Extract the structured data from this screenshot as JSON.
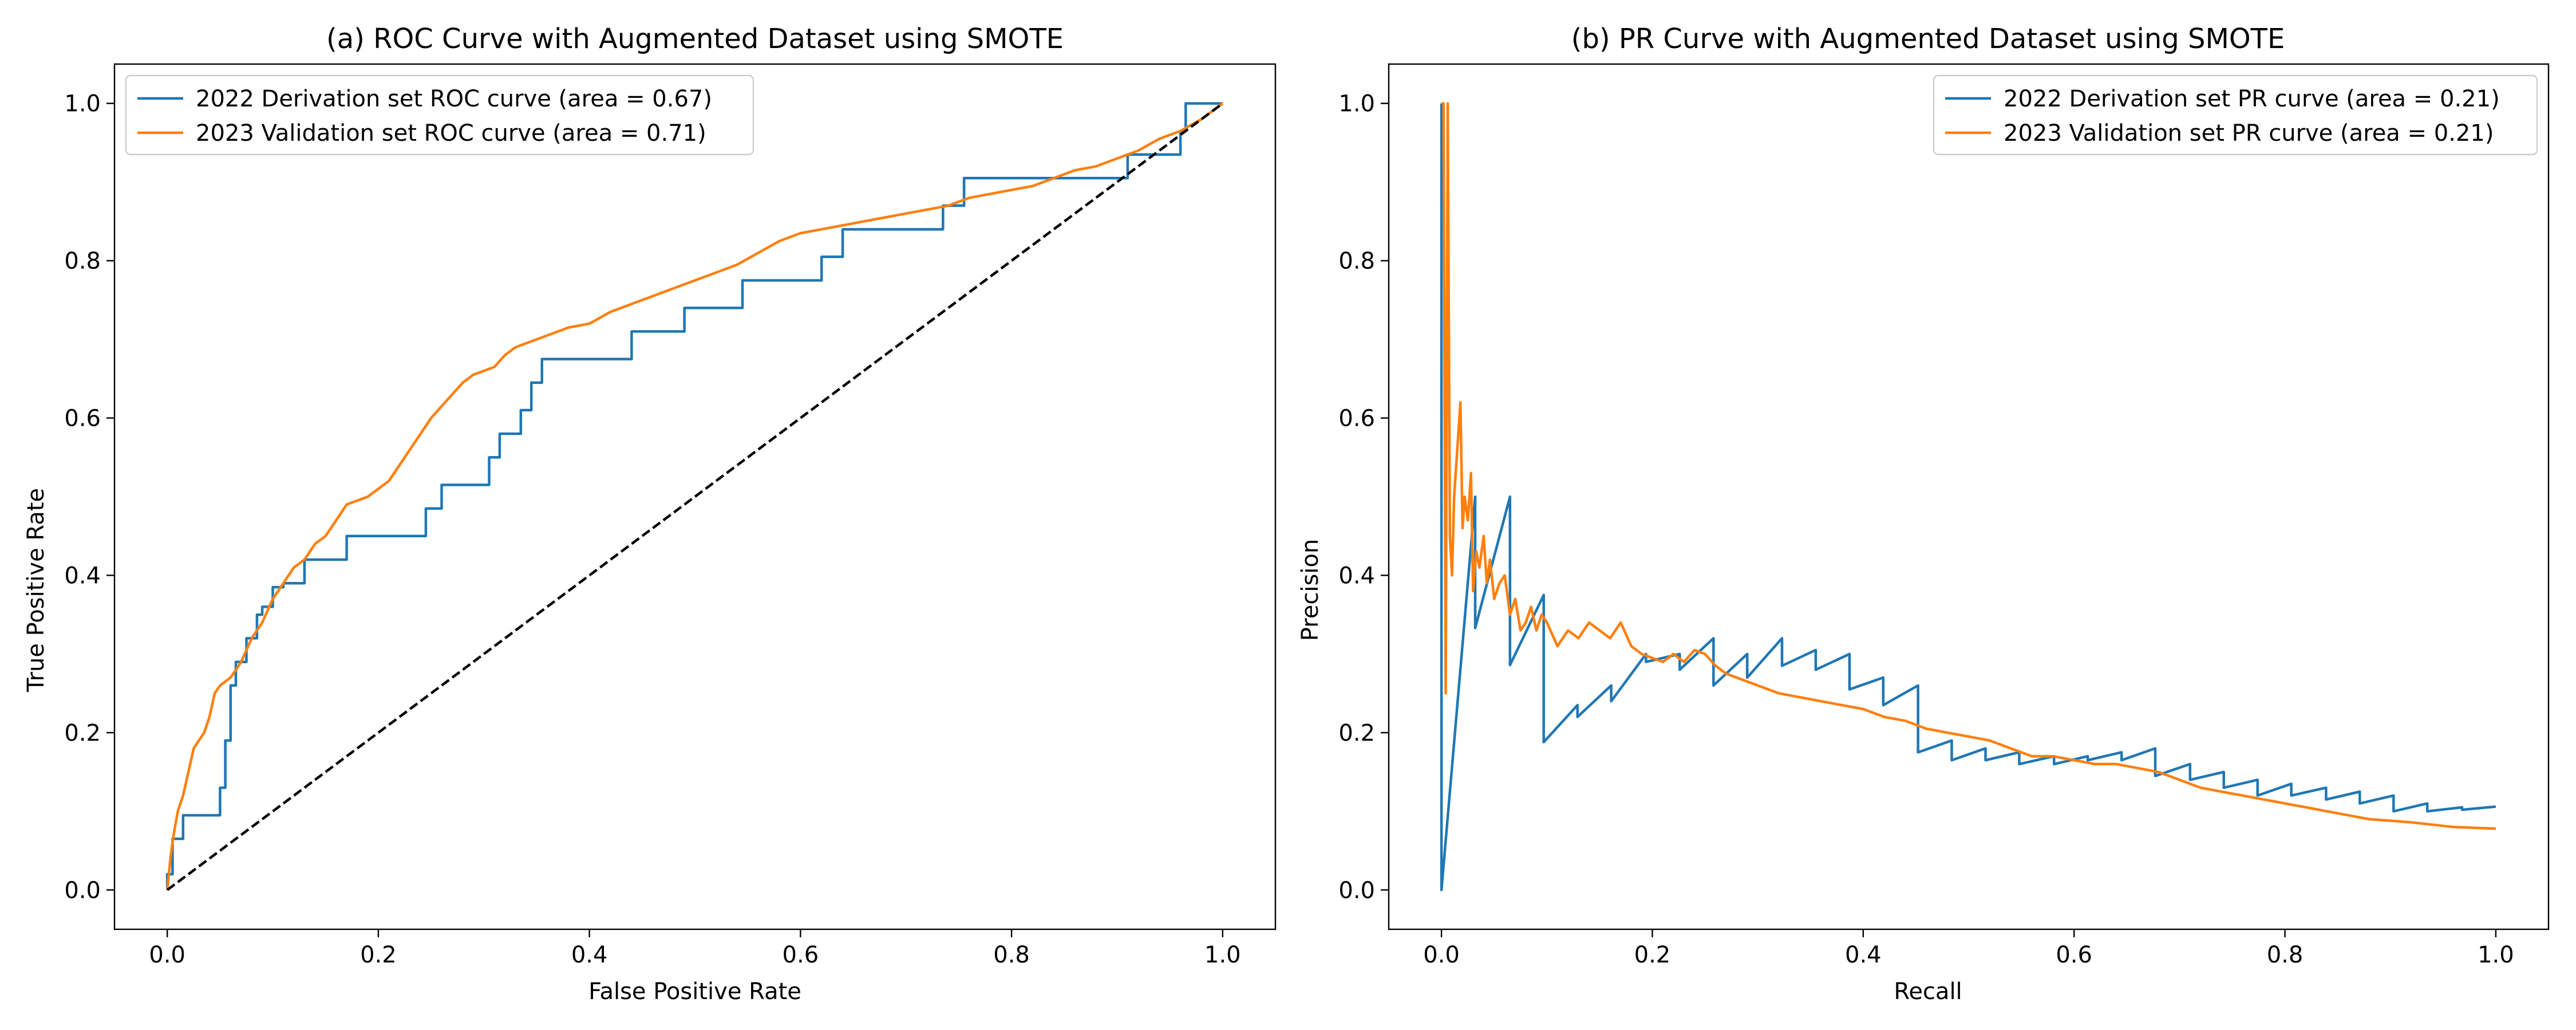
{
  "colors": {
    "series_2022": "#1f77b4",
    "series_2023": "#ff7f0e",
    "diagonal": "#000000"
  },
  "chart_data": [
    {
      "type": "line",
      "title": "(a) ROC Curve with Augmented Dataset using SMOTE",
      "xlabel": "False Positive Rate",
      "ylabel": "True Positive Rate",
      "xlim": [
        -0.05,
        1.05
      ],
      "ylim": [
        -0.05,
        1.05
      ],
      "xticks": [
        0.0,
        0.2,
        0.4,
        0.6,
        0.8,
        1.0
      ],
      "yticks": [
        0.0,
        0.2,
        0.4,
        0.6,
        0.8,
        1.0
      ],
      "tick_labels": [
        "0.0",
        "0.2",
        "0.4",
        "0.6",
        "0.8",
        "1.0"
      ],
      "grid": false,
      "legend_position": "upper-left",
      "reference_line": {
        "style": "dashed",
        "x": [
          0,
          1
        ],
        "y": [
          0,
          1
        ]
      },
      "series": [
        {
          "name": "2022 Derivation set ROC curve (area = 0.67)",
          "x": [
            0.0,
            0.0,
            0.005,
            0.005,
            0.015,
            0.015,
            0.02,
            0.02,
            0.05,
            0.05,
            0.055,
            0.055,
            0.06,
            0.06,
            0.065,
            0.065,
            0.075,
            0.075,
            0.085,
            0.085,
            0.09,
            0.09,
            0.1,
            0.1,
            0.11,
            0.11,
            0.13,
            0.13,
            0.17,
            0.17,
            0.245,
            0.245,
            0.26,
            0.26,
            0.305,
            0.305,
            0.315,
            0.315,
            0.335,
            0.335,
            0.345,
            0.345,
            0.355,
            0.355,
            0.44,
            0.44,
            0.49,
            0.49,
            0.545,
            0.545,
            0.62,
            0.62,
            0.64,
            0.64,
            0.735,
            0.735,
            0.755,
            0.755,
            0.91,
            0.91,
            0.96,
            0.96,
            0.965,
            0.965,
            1.0
          ],
          "y": [
            0.0,
            0.02,
            0.02,
            0.065,
            0.065,
            0.095,
            0.095,
            0.095,
            0.095,
            0.13,
            0.13,
            0.19,
            0.19,
            0.26,
            0.26,
            0.29,
            0.29,
            0.32,
            0.32,
            0.35,
            0.35,
            0.36,
            0.36,
            0.385,
            0.385,
            0.39,
            0.39,
            0.42,
            0.42,
            0.45,
            0.45,
            0.485,
            0.485,
            0.515,
            0.515,
            0.55,
            0.55,
            0.58,
            0.58,
            0.61,
            0.61,
            0.645,
            0.645,
            0.675,
            0.675,
            0.71,
            0.71,
            0.74,
            0.74,
            0.775,
            0.775,
            0.805,
            0.805,
            0.84,
            0.84,
            0.87,
            0.87,
            0.905,
            0.905,
            0.935,
            0.935,
            0.965,
            0.965,
            1.0,
            1.0
          ]
        },
        {
          "name": "2023 Validation set ROC curve (area = 0.71)",
          "x": [
            0.0,
            0.003,
            0.006,
            0.01,
            0.015,
            0.02,
            0.025,
            0.03,
            0.035,
            0.04,
            0.045,
            0.05,
            0.06,
            0.07,
            0.08,
            0.09,
            0.1,
            0.11,
            0.12,
            0.13,
            0.14,
            0.15,
            0.16,
            0.17,
            0.18,
            0.19,
            0.2,
            0.21,
            0.22,
            0.23,
            0.24,
            0.25,
            0.26,
            0.27,
            0.28,
            0.29,
            0.3,
            0.31,
            0.32,
            0.33,
            0.34,
            0.35,
            0.36,
            0.38,
            0.4,
            0.42,
            0.44,
            0.46,
            0.48,
            0.5,
            0.52,
            0.54,
            0.56,
            0.58,
            0.6,
            0.62,
            0.64,
            0.66,
            0.68,
            0.7,
            0.72,
            0.74,
            0.76,
            0.78,
            0.8,
            0.82,
            0.84,
            0.86,
            0.88,
            0.9,
            0.92,
            0.94,
            0.96,
            0.98,
            1.0
          ],
          "y": [
            0.0,
            0.04,
            0.07,
            0.1,
            0.12,
            0.15,
            0.18,
            0.19,
            0.2,
            0.22,
            0.25,
            0.26,
            0.27,
            0.29,
            0.32,
            0.34,
            0.37,
            0.39,
            0.41,
            0.42,
            0.44,
            0.45,
            0.47,
            0.49,
            0.495,
            0.5,
            0.51,
            0.52,
            0.54,
            0.56,
            0.58,
            0.6,
            0.615,
            0.63,
            0.645,
            0.655,
            0.66,
            0.665,
            0.68,
            0.69,
            0.695,
            0.7,
            0.705,
            0.715,
            0.72,
            0.735,
            0.745,
            0.755,
            0.765,
            0.775,
            0.785,
            0.795,
            0.81,
            0.825,
            0.835,
            0.84,
            0.845,
            0.85,
            0.855,
            0.86,
            0.865,
            0.87,
            0.88,
            0.885,
            0.89,
            0.895,
            0.905,
            0.915,
            0.92,
            0.93,
            0.94,
            0.955,
            0.965,
            0.98,
            1.0
          ]
        }
      ]
    },
    {
      "type": "line",
      "title": "(b) PR Curve with Augmented Dataset using SMOTE",
      "xlabel": "Recall",
      "ylabel": "Precision",
      "xlim": [
        -0.05,
        1.05
      ],
      "ylim": [
        -0.05,
        1.05
      ],
      "xticks": [
        0.0,
        0.2,
        0.4,
        0.6,
        0.8,
        1.0
      ],
      "yticks": [
        0.0,
        0.2,
        0.4,
        0.6,
        0.8,
        1.0
      ],
      "tick_labels": [
        "0.0",
        "0.2",
        "0.4",
        "0.6",
        "0.8",
        "1.0"
      ],
      "grid": false,
      "legend_position": "upper-right",
      "series": [
        {
          "name": "2022 Derivation set PR curve (area = 0.21)",
          "x": [
            0.0,
            0.0,
            0.0,
            0.032,
            0.032,
            0.065,
            0.065,
            0.097,
            0.097,
            0.129,
            0.129,
            0.161,
            0.161,
            0.194,
            0.194,
            0.226,
            0.226,
            0.258,
            0.258,
            0.29,
            0.29,
            0.323,
            0.323,
            0.355,
            0.355,
            0.387,
            0.387,
            0.419,
            0.419,
            0.452,
            0.452,
            0.484,
            0.484,
            0.516,
            0.516,
            0.548,
            0.548,
            0.581,
            0.581,
            0.613,
            0.613,
            0.645,
            0.645,
            0.677,
            0.677,
            0.71,
            0.71,
            0.742,
            0.742,
            0.774,
            0.774,
            0.806,
            0.806,
            0.839,
            0.839,
            0.871,
            0.871,
            0.903,
            0.903,
            0.935,
            0.935,
            0.968,
            0.968,
            1.0
          ],
          "y": [
            1.0,
            1.0,
            0.0,
            0.5,
            0.333,
            0.5,
            0.286,
            0.375,
            0.188,
            0.235,
            0.22,
            0.26,
            0.24,
            0.3,
            0.29,
            0.3,
            0.28,
            0.32,
            0.26,
            0.3,
            0.27,
            0.32,
            0.285,
            0.305,
            0.28,
            0.3,
            0.255,
            0.27,
            0.235,
            0.26,
            0.175,
            0.19,
            0.165,
            0.18,
            0.165,
            0.175,
            0.16,
            0.17,
            0.16,
            0.17,
            0.165,
            0.175,
            0.165,
            0.18,
            0.145,
            0.16,
            0.14,
            0.15,
            0.13,
            0.14,
            0.12,
            0.135,
            0.12,
            0.13,
            0.115,
            0.125,
            0.11,
            0.12,
            0.1,
            0.11,
            0.1,
            0.105,
            0.102,
            0.106
          ]
        },
        {
          "name": "2023 Validation set PR curve (area = 0.21)",
          "x": [
            0.0,
            0.002,
            0.004,
            0.006,
            0.008,
            0.01,
            0.012,
            0.015,
            0.018,
            0.02,
            0.022,
            0.025,
            0.028,
            0.03,
            0.033,
            0.036,
            0.04,
            0.043,
            0.046,
            0.05,
            0.055,
            0.06,
            0.065,
            0.07,
            0.075,
            0.08,
            0.085,
            0.09,
            0.095,
            0.1,
            0.11,
            0.12,
            0.13,
            0.14,
            0.15,
            0.16,
            0.17,
            0.18,
            0.19,
            0.2,
            0.21,
            0.22,
            0.23,
            0.24,
            0.25,
            0.26,
            0.27,
            0.28,
            0.3,
            0.32,
            0.34,
            0.36,
            0.38,
            0.4,
            0.42,
            0.44,
            0.46,
            0.48,
            0.5,
            0.52,
            0.54,
            0.56,
            0.58,
            0.6,
            0.62,
            0.64,
            0.66,
            0.68,
            0.7,
            0.72,
            0.74,
            0.76,
            0.78,
            0.8,
            0.82,
            0.84,
            0.86,
            0.88,
            0.9,
            0.92,
            0.94,
            0.96,
            0.98,
            1.0
          ],
          "y": [
            1.0,
            1.0,
            0.25,
            1.0,
            0.45,
            0.4,
            0.5,
            0.56,
            0.62,
            0.46,
            0.5,
            0.47,
            0.53,
            0.38,
            0.43,
            0.41,
            0.45,
            0.39,
            0.42,
            0.37,
            0.39,
            0.4,
            0.35,
            0.37,
            0.33,
            0.34,
            0.36,
            0.33,
            0.35,
            0.34,
            0.31,
            0.33,
            0.32,
            0.34,
            0.33,
            0.32,
            0.34,
            0.31,
            0.3,
            0.295,
            0.29,
            0.3,
            0.29,
            0.305,
            0.3,
            0.285,
            0.275,
            0.27,
            0.26,
            0.25,
            0.245,
            0.24,
            0.235,
            0.23,
            0.22,
            0.215,
            0.205,
            0.2,
            0.195,
            0.19,
            0.18,
            0.17,
            0.17,
            0.165,
            0.16,
            0.16,
            0.155,
            0.15,
            0.14,
            0.13,
            0.125,
            0.12,
            0.115,
            0.11,
            0.105,
            0.1,
            0.095,
            0.09,
            0.088,
            0.086,
            0.083,
            0.08,
            0.079,
            0.078
          ]
        }
      ]
    }
  ]
}
